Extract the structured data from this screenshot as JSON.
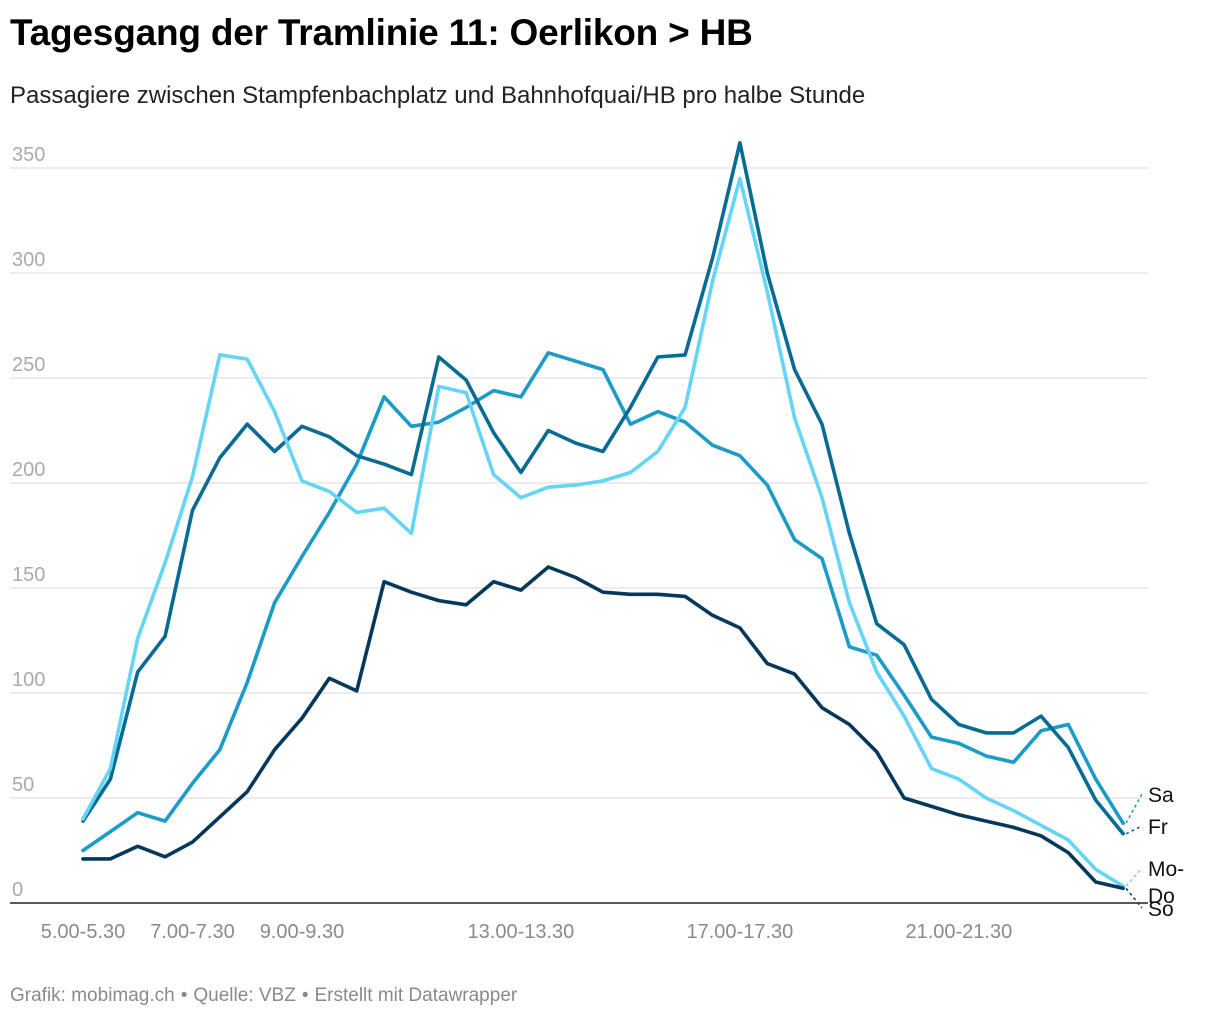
{
  "header": {
    "title": "Tagesgang der Tramlinie 11: Oerlikon > HB",
    "subtitle": "Passagiere zwischen Stampfenbachplatz und Bahnhofquai/HB pro halbe Stunde"
  },
  "footer": {
    "credit": "Grafik: mobimag.ch",
    "source": "Quelle: VBZ",
    "tool": "Erstellt mit Datawrapper",
    "separator": "•"
  },
  "chart_data": {
    "type": "line",
    "ylim": [
      0,
      360
    ],
    "yticks": [
      0,
      50,
      100,
      150,
      200,
      250,
      300,
      350
    ],
    "xtick_labels": [
      {
        "index": 0,
        "label": "5.00-5.30"
      },
      {
        "index": 4,
        "label": "7.00-7.30"
      },
      {
        "index": 8,
        "label": "9.00-9.30"
      },
      {
        "index": 16,
        "label": "13.00-13.30"
      },
      {
        "index": 24,
        "label": "17.00-17.30"
      },
      {
        "index": 32,
        "label": "21.00-21.30"
      }
    ],
    "grid": true,
    "legend": "direct labels at right end",
    "series": [
      {
        "name": "Sa",
        "color": "#1b9bc7",
        "values": [
          25,
          34,
          43,
          39,
          57,
          73,
          105,
          143,
          165,
          186,
          209,
          241,
          227,
          229,
          236,
          244,
          241,
          262,
          258,
          254,
          228,
          234,
          229,
          218,
          213,
          199,
          173,
          164,
          122,
          118,
          99,
          79,
          76,
          70,
          67,
          82,
          85,
          59,
          38
        ]
      },
      {
        "name": "Fr",
        "color": "#086b94",
        "values": [
          39,
          59,
          110,
          127,
          187,
          212,
          228,
          215,
          227,
          222,
          213,
          209,
          204,
          260,
          249,
          224,
          205,
          225,
          219,
          215,
          236,
          260,
          261,
          307,
          362,
          300,
          254,
          228,
          176,
          133,
          123,
          97,
          85,
          81,
          81,
          89,
          74,
          49,
          33
        ]
      },
      {
        "name": "Mo-Do",
        "color": "#64d4f7",
        "values": [
          40,
          64,
          126,
          162,
          203,
          261,
          259,
          234,
          201,
          196,
          186,
          188,
          176,
          246,
          243,
          204,
          193,
          198,
          199,
          201,
          205,
          215,
          236,
          296,
          345,
          291,
          231,
          193,
          143,
          110,
          89,
          64,
          59,
          50,
          44,
          37,
          30,
          16,
          8
        ]
      },
      {
        "name": "So",
        "color": "#06385b",
        "values": [
          21,
          21,
          27,
          22,
          29,
          41,
          53,
          73,
          88,
          107,
          101,
          153,
          148,
          144,
          142,
          153,
          149,
          160,
          155,
          148,
          147,
          147,
          146,
          137,
          131,
          114,
          109,
          93,
          85,
          72,
          50,
          46,
          42,
          39,
          36,
          32,
          24,
          10,
          7
        ]
      }
    ]
  }
}
